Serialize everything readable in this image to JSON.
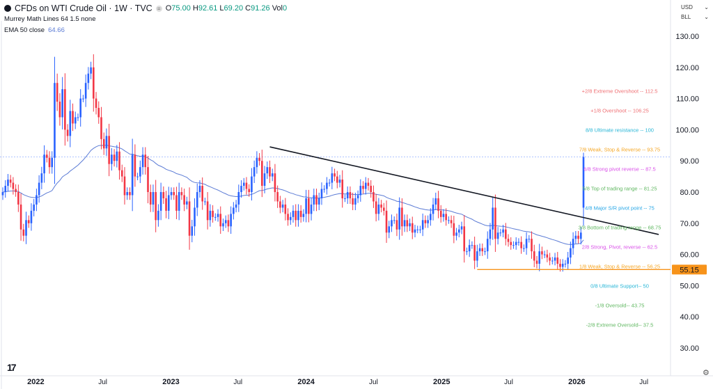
{
  "header": {
    "symbol_title": "CFDs on WTI Crude Oil · 1W · TVC",
    "ohlc": {
      "o_label": "O",
      "o": "75.00",
      "h_label": "H",
      "h": "92.61",
      "l_label": "L",
      "l": "69.20",
      "c_label": "C",
      "c": "91.26"
    },
    "volume_label": "Vol",
    "volume_value": "0",
    "indicator_1": "Murrey Math Lines 64 1.5 none",
    "indicator_2_label": "EMA 50 close",
    "indicator_2_value": "64.66"
  },
  "price_scale": {
    "currency": "USD",
    "unit": "BLL"
  },
  "colors": {
    "up": "#2962ff",
    "down": "#f23645",
    "ema": "#5b7bd5",
    "trendline": "#131722",
    "support": "#f7931a",
    "price_line": "#2962ff"
  },
  "icons": {
    "logo": "tradingview-logo",
    "settings": "gear-icon"
  },
  "chart_data": {
    "type": "candlestick",
    "interval": "1W",
    "start_week": "2021-10-04",
    "ylim": [
      25,
      135
    ],
    "y_ticks": [
      "130.00",
      "120.00",
      "110.00",
      "100.00",
      "90.00",
      "80.00",
      "70.00",
      "60.00",
      "50.00",
      "40.00",
      "30.00"
    ],
    "x_ticks": [
      {
        "label": "2022",
        "date": "2022-01-01",
        "bold": true
      },
      {
        "label": "Jul",
        "date": "2022-07-01",
        "bold": false
      },
      {
        "label": "2023",
        "date": "2023-01-01",
        "bold": true
      },
      {
        "label": "Jul",
        "date": "2023-07-01",
        "bold": false
      },
      {
        "label": "2024",
        "date": "2024-01-01",
        "bold": true
      },
      {
        "label": "Jul",
        "date": "2024-07-01",
        "bold": false
      },
      {
        "label": "2025",
        "date": "2025-01-01",
        "bold": true
      },
      {
        "label": "Jul",
        "date": "2025-07-01",
        "bold": false
      },
      {
        "label": "2026",
        "date": "2026-01-01",
        "bold": true
      },
      {
        "label": "Jul",
        "date": "2026-07-01",
        "bold": false
      }
    ],
    "weekly_closes": [
      80,
      82,
      84,
      83,
      81,
      80,
      76,
      68,
      66,
      71,
      70,
      74,
      76,
      79,
      83,
      86,
      92,
      91,
      88,
      91,
      115,
      109,
      104,
      113,
      100,
      98,
      106,
      102,
      104,
      104,
      110,
      110,
      115,
      118,
      120,
      110,
      107,
      104,
      97,
      94,
      98,
      89,
      92,
      90,
      93,
      87,
      85,
      79,
      80,
      79,
      92,
      85,
      85,
      88,
      92,
      88,
      80,
      76,
      80,
      71,
      74,
      80,
      78,
      74,
      79,
      80,
      79,
      74,
      80,
      79,
      76,
      77,
      66,
      69,
      75,
      80,
      82,
      77,
      77,
      71,
      74,
      72,
      72,
      73,
      69,
      70,
      71,
      69,
      73,
      75,
      76,
      80,
      82,
      83,
      81,
      80,
      85,
      88,
      91,
      90,
      82,
      86,
      88,
      85,
      86,
      80,
      77,
      75,
      76,
      73,
      71,
      72,
      74,
      71,
      74,
      72,
      73,
      78,
      73,
      76,
      79,
      76,
      78,
      81,
      81,
      83,
      83,
      86,
      85,
      83,
      84,
      78,
      78,
      80,
      78,
      76,
      78,
      79,
      82,
      81,
      83,
      82,
      80,
      77,
      73,
      76,
      75,
      74,
      67,
      69,
      71,
      71,
      68,
      75,
      69,
      71,
      69,
      70,
      67,
      68,
      68,
      68,
      71,
      70,
      71,
      73,
      76,
      78,
      74,
      72,
      73,
      71,
      71,
      70,
      66,
      67,
      68,
      69,
      61,
      61,
      63,
      63,
      58,
      61,
      62,
      61,
      61,
      65,
      68,
      75,
      65,
      67,
      67,
      68,
      65,
      64,
      63,
      63,
      64,
      64,
      62,
      62,
      65,
      65,
      61,
      58,
      57,
      61,
      60,
      60,
      59,
      58,
      58,
      59,
      57,
      56,
      57,
      57,
      59,
      62,
      65,
      66,
      65,
      67
    ],
    "last_candle": {
      "o": 75.0,
      "h": 92.61,
      "l": 69.2,
      "c": 91.26
    },
    "ema_period": 50,
    "current_price": 91.26,
    "trendline": {
      "from": {
        "date": "2023-09-25",
        "price": 94.5
      },
      "to": {
        "date": "2026-08-10",
        "price": 66.4
      }
    },
    "support": {
      "price": 55.15,
      "label": "55.15",
      "from_date": "2025-04-07"
    },
    "murrey_levels": [
      {
        "label": "+2/8 Extreme Overshoot --  112.5",
        "price": 112.5,
        "color": "#ef6f73"
      },
      {
        "label": "+1/8 Overshoot --  106.25",
        "price": 106.25,
        "color": "#ef6f73"
      },
      {
        "label": "8/8 Ultimate resistance --  100",
        "price": 100,
        "color": "#26b5d6"
      },
      {
        "label": "7/8 Weak, Stop & Reverse --  93.75",
        "price": 93.75,
        "color": "#f5a623"
      },
      {
        "label": "6/8 Strong pivot reverse --  87.5",
        "price": 87.5,
        "color": "#d94fe8"
      },
      {
        "label": "5/8 Top of trading range --  81.25",
        "price": 81.25,
        "color": "#5fb760"
      },
      {
        "label": "4/8 Major S/R pivot point --  75",
        "price": 75,
        "color": "#26a6e6"
      },
      {
        "label": "3/8 Bottom of trading range --  68.75",
        "price": 68.75,
        "color": "#5fb760"
      },
      {
        "label": "2/8 Strong, Pivot, reverse --  62.5",
        "price": 62.5,
        "color": "#d94fe8"
      },
      {
        "label": "1/8 Weak, Stop & Reverse --  56.25",
        "price": 56.25,
        "color": "#f5a623"
      },
      {
        "label": "0/8 Ultimate Support--  50",
        "price": 50,
        "color": "#26b5d6"
      },
      {
        "label": "-1/8 Oversold--  43.75",
        "price": 43.75,
        "color": "#5fb760"
      },
      {
        "label": "-2/8 Extreme Oversold--  37.5",
        "price": 37.5,
        "color": "#5fb760"
      }
    ]
  }
}
